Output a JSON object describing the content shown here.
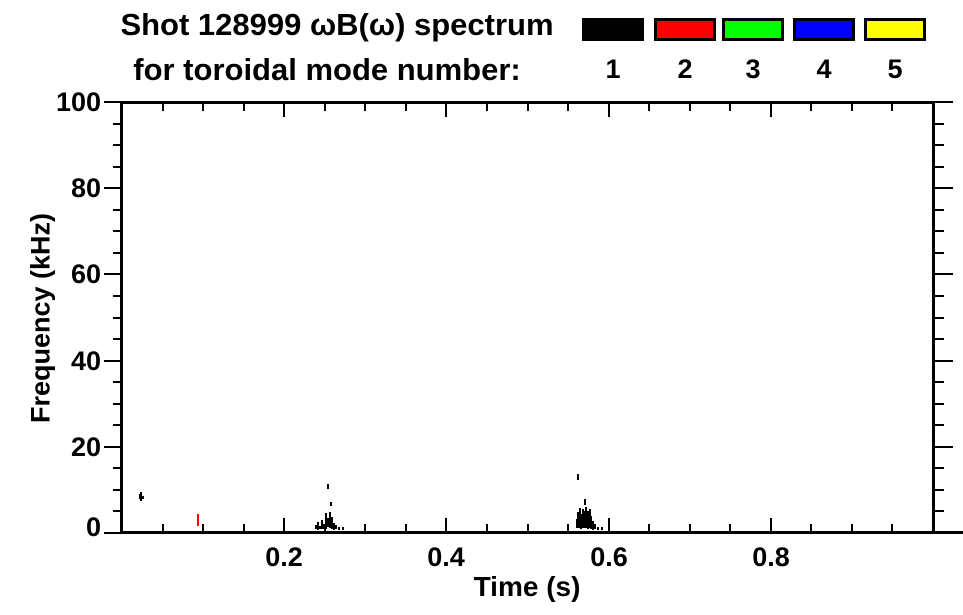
{
  "header": {
    "title_line1": "Shot 128999 ωB(ω) spectrum",
    "title_line2": "for toroidal mode number:"
  },
  "legend": {
    "items": [
      {
        "label": "1",
        "color": "#000000"
      },
      {
        "label": "2",
        "color": "#ff0000"
      },
      {
        "label": "3",
        "color": "#00ff00"
      },
      {
        "label": "4",
        "color": "#0000ff"
      },
      {
        "label": "5",
        "color": "#ffff00"
      }
    ]
  },
  "chart_data": {
    "type": "scatter",
    "title": "Shot 128999 ωB(ω) spectrum for toroidal mode number: 1 2 3 4 5",
    "xlabel": "Time (s)",
    "ylabel": "Frequency (kHz)",
    "xlim": [
      0.0,
      1.0
    ],
    "ylim": [
      0,
      100
    ],
    "x_major_ticks": [
      0.2,
      0.4,
      0.6,
      0.8
    ],
    "x_tick_labels": [
      "0.2",
      "0.4",
      "0.6",
      "0.8"
    ],
    "x_minor_interval": 0.05,
    "y_major_ticks": [
      0,
      20,
      40,
      60,
      80,
      100
    ],
    "y_tick_labels": [
      "0",
      "20",
      "40",
      "60",
      "80",
      "100"
    ],
    "y_minor_interval": 5,
    "grid": false,
    "legend_position": "top-right",
    "series": [
      {
        "name": "n=1",
        "color": "#000000",
        "marks": [
          [
            0.022,
            7.8,
            9.0
          ],
          [
            0.024,
            7.2,
            9.4
          ],
          [
            0.026,
            7.8,
            8.6
          ],
          [
            0.2395,
            0.8,
            1.8
          ],
          [
            0.242,
            0.8,
            2.6
          ],
          [
            0.2445,
            0.8,
            1.6
          ],
          [
            0.247,
            1.0,
            3.0
          ],
          [
            0.2495,
            0.8,
            2.0
          ],
          [
            0.252,
            1.0,
            4.6
          ],
          [
            0.254,
            1.2,
            3.4
          ],
          [
            0.254,
            10.2,
            11.4
          ],
          [
            0.256,
            1.0,
            4.8
          ],
          [
            0.2577,
            6.2,
            7.2
          ],
          [
            0.2585,
            1.0,
            3.8
          ],
          [
            0.261,
            0.8,
            2.4
          ],
          [
            0.2635,
            0.8,
            1.8
          ],
          [
            0.267,
            0.8,
            1.4
          ],
          [
            0.272,
            0.8,
            1.4
          ],
          [
            0.5605,
            1.0,
            3.2
          ],
          [
            0.5625,
            12.4,
            13.8
          ],
          [
            0.5625,
            1.0,
            4.8
          ],
          [
            0.5645,
            1.2,
            5.8
          ],
          [
            0.5665,
            1.0,
            4.4
          ],
          [
            0.5685,
            1.2,
            5.6
          ],
          [
            0.5705,
            6.6,
            8.0
          ],
          [
            0.5705,
            1.0,
            5.0
          ],
          [
            0.5725,
            1.2,
            6.0
          ],
          [
            0.5745,
            1.0,
            5.2
          ],
          [
            0.5765,
            1.2,
            5.6
          ],
          [
            0.5785,
            1.0,
            4.0
          ],
          [
            0.5805,
            0.8,
            2.8
          ],
          [
            0.583,
            0.8,
            2.0
          ],
          [
            0.587,
            0.8,
            1.4
          ],
          [
            0.5915,
            0.8,
            1.4
          ]
        ]
      },
      {
        "name": "n=2",
        "color": "#ff0000",
        "marks": [
          [
            0.094,
            1.6,
            4.4
          ]
        ]
      },
      {
        "name": "n=3",
        "color": "#00ff00",
        "marks": []
      },
      {
        "name": "n=4",
        "color": "#0000ff",
        "marks": []
      },
      {
        "name": "n=5",
        "color": "#ffff00",
        "marks": []
      }
    ]
  }
}
